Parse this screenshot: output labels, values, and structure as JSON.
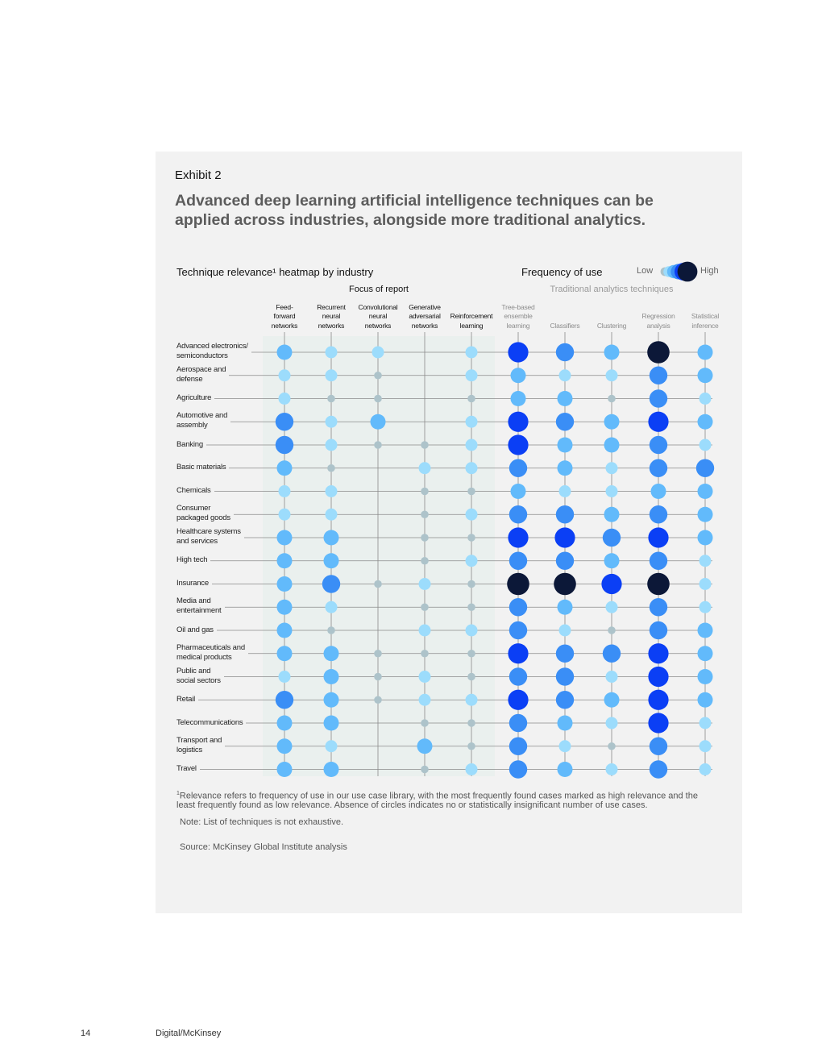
{
  "exhibit": {
    "label": "Exhibit 2",
    "title": "Advanced deep learning artificial intelligence techniques can be applied across industries, alongside more traditional analytics."
  },
  "chart_data": {
    "type": "heatmap",
    "title": "Technique relevance¹ heatmap by industry",
    "legend": {
      "title": "Frequency of use",
      "low": "Low",
      "high": "High",
      "placement": "top-right"
    },
    "group_labels": {
      "focus": "Focus of report",
      "traditional": "Traditional analytics techniques"
    },
    "columns": [
      "Feed-\nforward\nnetworks",
      "Recurrent\nneural\nnetworks",
      "Convolutional\nneural\nnetworks",
      "Generative\nadversarial\nnetworks",
      "Reinforcement\nlearning",
      "Tree-based\nensemble\nlearning",
      "Classifiers",
      "Clustering",
      "Regression\nanalysis",
      "Statistical\ninference"
    ],
    "column_groups": [
      "focus",
      "focus",
      "focus",
      "focus",
      "focus",
      "traditional",
      "traditional",
      "traditional",
      "traditional",
      "traditional"
    ],
    "rows": [
      "Advanced electronics/\nsemiconductors",
      "Aerospace and\ndefense",
      "Agriculture",
      "Automotive and\nassembly",
      "Banking",
      "Basic materials",
      "Chemicals",
      "Consumer\npackaged goods",
      "Healthcare systems\nand services",
      "High tech",
      "Insurance",
      "Media and\nentertainment",
      "Oil and gas",
      "Pharmaceuticals and\nmedical products",
      "Public and\nsocial sectors",
      "Retail",
      "Telecommunications",
      "Transport and\nlogistics",
      "Travel"
    ],
    "scale": "0 = none, 1 = lowest ... 6 = highest frequency of use",
    "values": [
      [
        3,
        2,
        2,
        0,
        2,
        5,
        4,
        3,
        6,
        3
      ],
      [
        2,
        2,
        1,
        0,
        2,
        3,
        2,
        2,
        4,
        3
      ],
      [
        2,
        1,
        1,
        0,
        1,
        3,
        3,
        1,
        4,
        2
      ],
      [
        4,
        2,
        3,
        0,
        2,
        5,
        4,
        3,
        5,
        3
      ],
      [
        4,
        2,
        1,
        1,
        2,
        5,
        3,
        3,
        4,
        2
      ],
      [
        3,
        1,
        0,
        2,
        2,
        4,
        3,
        2,
        4,
        4
      ],
      [
        2,
        2,
        0,
        1,
        1,
        3,
        2,
        2,
        3,
        3
      ],
      [
        2,
        2,
        0,
        1,
        2,
        4,
        4,
        3,
        4,
        3
      ],
      [
        3,
        3,
        0,
        1,
        1,
        5,
        5,
        4,
        5,
        3
      ],
      [
        3,
        3,
        0,
        1,
        2,
        4,
        4,
        3,
        4,
        2
      ],
      [
        3,
        4,
        1,
        2,
        1,
        6,
        6,
        5,
        6,
        2
      ],
      [
        3,
        2,
        0,
        1,
        1,
        4,
        3,
        2,
        4,
        2
      ],
      [
        3,
        1,
        0,
        2,
        2,
        4,
        2,
        1,
        4,
        3
      ],
      [
        3,
        3,
        1,
        1,
        1,
        5,
        4,
        4,
        5,
        3
      ],
      [
        2,
        3,
        1,
        2,
        1,
        4,
        4,
        2,
        5,
        3
      ],
      [
        4,
        3,
        1,
        2,
        2,
        5,
        4,
        3,
        5,
        3
      ],
      [
        3,
        3,
        0,
        1,
        1,
        4,
        3,
        2,
        5,
        2
      ],
      [
        3,
        2,
        0,
        3,
        1,
        4,
        2,
        1,
        4,
        2
      ],
      [
        3,
        3,
        0,
        1,
        2,
        4,
        3,
        2,
        4,
        2
      ]
    ],
    "level_colors": [
      "",
      "#adc3ca",
      "#9cdcfc",
      "#62bafb",
      "#3a8ef6",
      "#0b3ff5",
      "#0c1838"
    ]
  },
  "footnote": "Relevance refers to frequency of use in our use case library, with the most frequently found cases marked as high relevance and the least frequently found as low relevance. Absence of circles indicates no or statistically insignificant number of use cases.",
  "footnote_marker": "1",
  "note": "Note: List of techniques is not exhaustive.",
  "source": "Source: McKinsey Global Institute analysis",
  "page": {
    "number": "14",
    "publication": "Digital/McKinsey"
  }
}
